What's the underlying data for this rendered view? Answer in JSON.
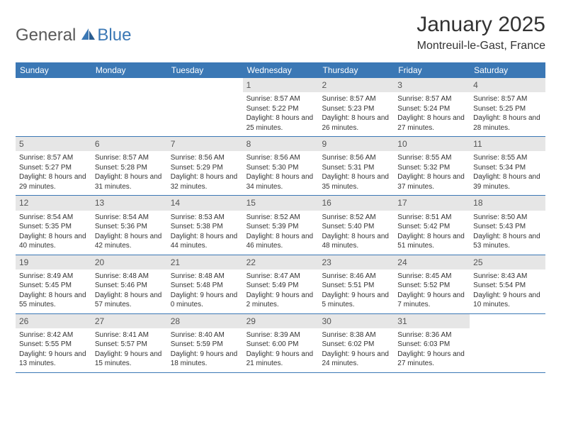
{
  "brand": {
    "part1": "General",
    "part2": "Blue"
  },
  "title": "January 2025",
  "location": "Montreuil-le-Gast, France",
  "colors": {
    "header_bg": "#3b78b5",
    "header_text": "#ffffff",
    "daynum_bg": "#e6e6e6",
    "daynum_text": "#555555",
    "body_text": "#333333",
    "row_border": "#3b78b5",
    "logo_gray": "#5a5a5a",
    "logo_blue": "#3b78b5",
    "page_bg": "#ffffff"
  },
  "weekdays": [
    "Sunday",
    "Monday",
    "Tuesday",
    "Wednesday",
    "Thursday",
    "Friday",
    "Saturday"
  ],
  "weeks": [
    [
      null,
      null,
      null,
      {
        "n": "1",
        "sr": "8:57 AM",
        "ss": "5:22 PM",
        "dl": "8 hours and 25 minutes."
      },
      {
        "n": "2",
        "sr": "8:57 AM",
        "ss": "5:23 PM",
        "dl": "8 hours and 26 minutes."
      },
      {
        "n": "3",
        "sr": "8:57 AM",
        "ss": "5:24 PM",
        "dl": "8 hours and 27 minutes."
      },
      {
        "n": "4",
        "sr": "8:57 AM",
        "ss": "5:25 PM",
        "dl": "8 hours and 28 minutes."
      }
    ],
    [
      {
        "n": "5",
        "sr": "8:57 AM",
        "ss": "5:27 PM",
        "dl": "8 hours and 29 minutes."
      },
      {
        "n": "6",
        "sr": "8:57 AM",
        "ss": "5:28 PM",
        "dl": "8 hours and 31 minutes."
      },
      {
        "n": "7",
        "sr": "8:56 AM",
        "ss": "5:29 PM",
        "dl": "8 hours and 32 minutes."
      },
      {
        "n": "8",
        "sr": "8:56 AM",
        "ss": "5:30 PM",
        "dl": "8 hours and 34 minutes."
      },
      {
        "n": "9",
        "sr": "8:56 AM",
        "ss": "5:31 PM",
        "dl": "8 hours and 35 minutes."
      },
      {
        "n": "10",
        "sr": "8:55 AM",
        "ss": "5:32 PM",
        "dl": "8 hours and 37 minutes."
      },
      {
        "n": "11",
        "sr": "8:55 AM",
        "ss": "5:34 PM",
        "dl": "8 hours and 39 minutes."
      }
    ],
    [
      {
        "n": "12",
        "sr": "8:54 AM",
        "ss": "5:35 PM",
        "dl": "8 hours and 40 minutes."
      },
      {
        "n": "13",
        "sr": "8:54 AM",
        "ss": "5:36 PM",
        "dl": "8 hours and 42 minutes."
      },
      {
        "n": "14",
        "sr": "8:53 AM",
        "ss": "5:38 PM",
        "dl": "8 hours and 44 minutes."
      },
      {
        "n": "15",
        "sr": "8:52 AM",
        "ss": "5:39 PM",
        "dl": "8 hours and 46 minutes."
      },
      {
        "n": "16",
        "sr": "8:52 AM",
        "ss": "5:40 PM",
        "dl": "8 hours and 48 minutes."
      },
      {
        "n": "17",
        "sr": "8:51 AM",
        "ss": "5:42 PM",
        "dl": "8 hours and 51 minutes."
      },
      {
        "n": "18",
        "sr": "8:50 AM",
        "ss": "5:43 PM",
        "dl": "8 hours and 53 minutes."
      }
    ],
    [
      {
        "n": "19",
        "sr": "8:49 AM",
        "ss": "5:45 PM",
        "dl": "8 hours and 55 minutes."
      },
      {
        "n": "20",
        "sr": "8:48 AM",
        "ss": "5:46 PM",
        "dl": "8 hours and 57 minutes."
      },
      {
        "n": "21",
        "sr": "8:48 AM",
        "ss": "5:48 PM",
        "dl": "9 hours and 0 minutes."
      },
      {
        "n": "22",
        "sr": "8:47 AM",
        "ss": "5:49 PM",
        "dl": "9 hours and 2 minutes."
      },
      {
        "n": "23",
        "sr": "8:46 AM",
        "ss": "5:51 PM",
        "dl": "9 hours and 5 minutes."
      },
      {
        "n": "24",
        "sr": "8:45 AM",
        "ss": "5:52 PM",
        "dl": "9 hours and 7 minutes."
      },
      {
        "n": "25",
        "sr": "8:43 AM",
        "ss": "5:54 PM",
        "dl": "9 hours and 10 minutes."
      }
    ],
    [
      {
        "n": "26",
        "sr": "8:42 AM",
        "ss": "5:55 PM",
        "dl": "9 hours and 13 minutes."
      },
      {
        "n": "27",
        "sr": "8:41 AM",
        "ss": "5:57 PM",
        "dl": "9 hours and 15 minutes."
      },
      {
        "n": "28",
        "sr": "8:40 AM",
        "ss": "5:59 PM",
        "dl": "9 hours and 18 minutes."
      },
      {
        "n": "29",
        "sr": "8:39 AM",
        "ss": "6:00 PM",
        "dl": "9 hours and 21 minutes."
      },
      {
        "n": "30",
        "sr": "8:38 AM",
        "ss": "6:02 PM",
        "dl": "9 hours and 24 minutes."
      },
      {
        "n": "31",
        "sr": "8:36 AM",
        "ss": "6:03 PM",
        "dl": "9 hours and 27 minutes."
      },
      null
    ]
  ],
  "labels": {
    "sunrise": "Sunrise: ",
    "sunset": "Sunset: ",
    "daylight": "Daylight: "
  }
}
